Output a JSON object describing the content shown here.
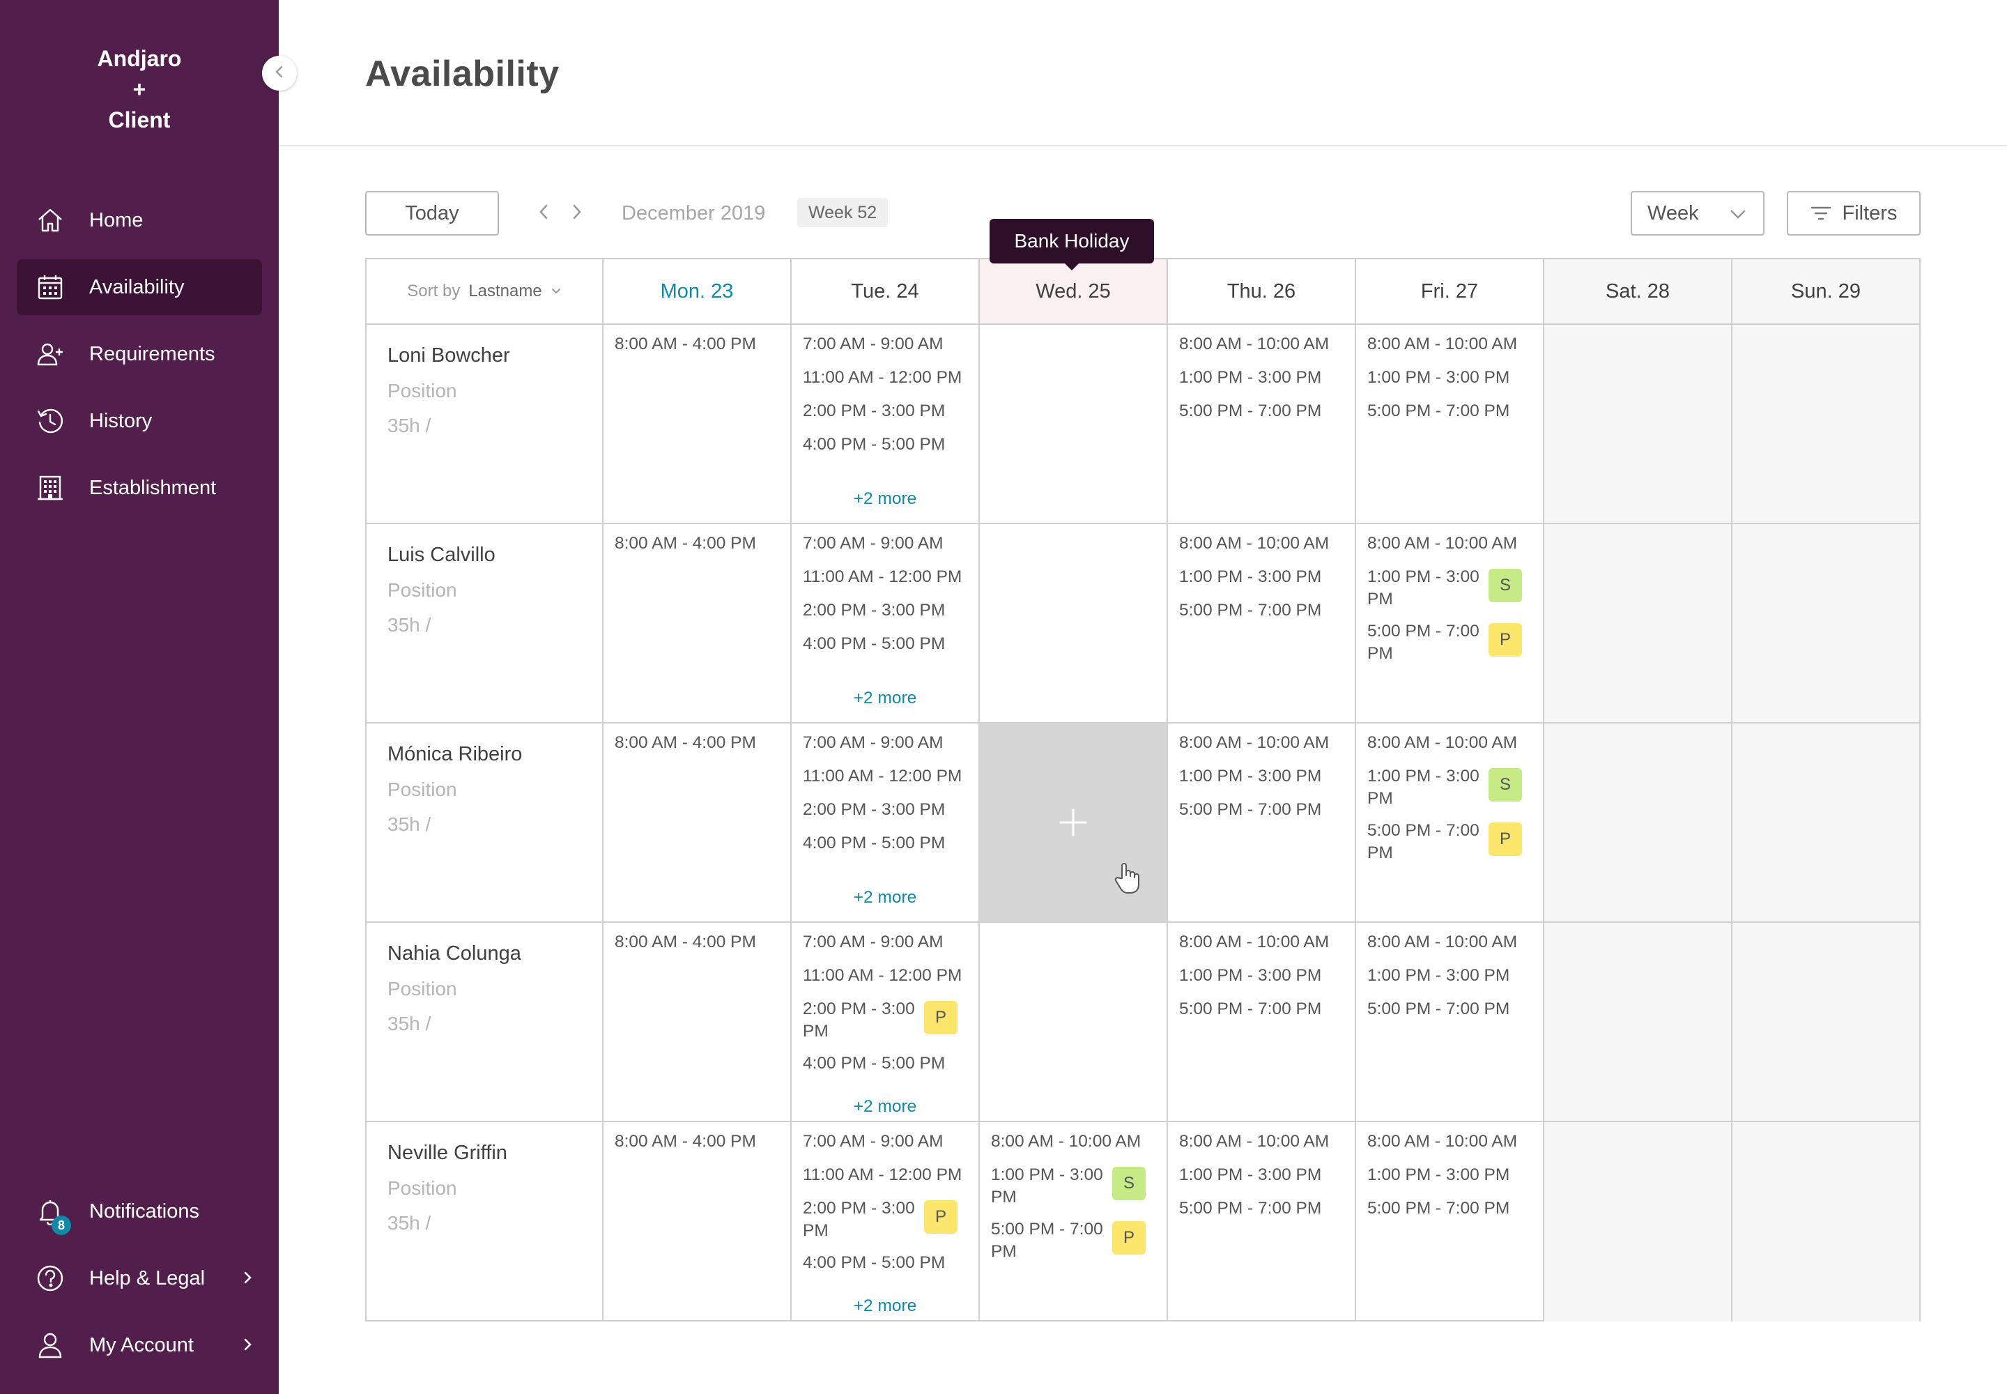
{
  "sidebar": {
    "brand_line1": "Andjaro",
    "brand_line2": "+",
    "brand_line3": "Client",
    "nav": [
      {
        "label": "Home",
        "icon": "home-icon"
      },
      {
        "label": "Availability",
        "icon": "calendar-icon",
        "active": true
      },
      {
        "label": "Requirements",
        "icon": "user-plus-icon"
      },
      {
        "label": "History",
        "icon": "history-icon"
      },
      {
        "label": "Establishment",
        "icon": "building-icon"
      }
    ],
    "bottom": [
      {
        "label": "Notifications",
        "icon": "bell-icon",
        "badge": "8"
      },
      {
        "label": "Help & Legal",
        "icon": "help-icon"
      },
      {
        "label": "My Account",
        "icon": "user-icon"
      }
    ]
  },
  "header": {
    "title": "Availability"
  },
  "toolbar": {
    "today_label": "Today",
    "month": "December 2019",
    "week_badge": "Week 52",
    "view_select": "Week",
    "filters_label": "Filters"
  },
  "tooltip": "Bank Holiday",
  "grid": {
    "sort_label": "Sort by",
    "sort_value": "Lastname",
    "days": [
      "Mon. 23",
      "Tue. 24",
      "Wed. 25",
      "Thu. 26",
      "Fri. 27",
      "Sat. 28",
      "Sun. 29"
    ],
    "more_label": "+2 more",
    "rows": [
      {
        "name": "Loni Bowcher",
        "position": "Position",
        "hours": "35h /",
        "mon": [
          "8:00 AM - 4:00 PM"
        ],
        "tue": [
          "7:00 AM - 9:00 AM",
          "11:00 AM - 12:00 PM",
          "2:00 PM - 3:00 PM",
          "4:00 PM - 5:00 PM"
        ],
        "thu": [
          "8:00 AM - 10:00 AM",
          "1:00 PM - 3:00 PM",
          "5:00 PM - 7:00 PM"
        ],
        "fri": [
          "8:00 AM - 10:00 AM",
          "1:00 PM - 3:00 PM",
          "5:00 PM - 7:00 PM"
        ]
      },
      {
        "name": "Luis Calvillo",
        "position": "Position",
        "hours": "35h /",
        "mon": [
          "8:00 AM - 4:00 PM"
        ],
        "tue": [
          "7:00 AM - 9:00 AM",
          "11:00 AM - 12:00 PM",
          "2:00 PM - 3:00 PM",
          "4:00 PM - 5:00 PM"
        ],
        "thu": [
          "8:00 AM - 10:00 AM",
          "1:00 PM - 3:00 PM",
          "5:00 PM - 7:00 PM"
        ],
        "fri": [
          "8:00 AM - 10:00 AM",
          "1:00 PM - 3:00 PM",
          "5:00 PM - 7:00 PM"
        ],
        "fri_tags": [
          "",
          "S",
          "P"
        ]
      },
      {
        "name": "Mónica Ribeiro",
        "position": "Position",
        "hours": "35h /",
        "mon": [
          "8:00 AM - 4:00 PM"
        ],
        "tue": [
          "7:00 AM - 9:00 AM",
          "11:00 AM - 12:00 PM",
          "2:00 PM - 3:00 PM",
          "4:00 PM - 5:00 PM"
        ],
        "thu": [
          "8:00 AM - 10:00 AM",
          "1:00 PM - 3:00 PM",
          "5:00 PM - 7:00 PM"
        ],
        "fri": [
          "8:00 AM - 10:00 AM",
          "1:00 PM - 3:00 PM",
          "5:00 PM - 7:00 PM"
        ],
        "fri_tags": [
          "",
          "S",
          "P"
        ]
      },
      {
        "name": "Nahia Colunga",
        "position": "Position",
        "hours": "35h /",
        "mon": [
          "8:00 AM - 4:00 PM"
        ],
        "tue": [
          "7:00 AM - 9:00 AM",
          "11:00 AM - 12:00 PM",
          "2:00 PM - 3:00 PM",
          "4:00 PM - 5:00 PM"
        ],
        "tue_tags": [
          "",
          "",
          "P",
          ""
        ],
        "thu": [
          "8:00 AM - 10:00 AM",
          "1:00 PM - 3:00 PM",
          "5:00 PM - 7:00 PM"
        ],
        "fri": [
          "8:00 AM - 10:00 AM",
          "1:00 PM - 3:00 PM",
          "5:00 PM - 7:00 PM"
        ]
      },
      {
        "name": "Neville Griffin",
        "position": "Position",
        "hours": "35h /",
        "mon": [
          "8:00 AM - 4:00 PM"
        ],
        "tue": [
          "7:00 AM - 9:00 AM",
          "11:00 AM - 12:00 PM",
          "2:00 PM - 3:00 PM",
          "4:00 PM - 5:00 PM"
        ],
        "tue_tags": [
          "",
          "",
          "P",
          ""
        ],
        "wed": [
          "8:00 AM - 10:00 AM",
          "1:00 PM - 3:00 PM",
          "5:00 PM - 7:00 PM"
        ],
        "wed_tags": [
          "",
          "S",
          "P"
        ],
        "thu": [
          "8:00 AM - 10:00 AM",
          "1:00 PM - 3:00 PM",
          "5:00 PM - 7:00 PM"
        ],
        "fri": [
          "8:00 AM - 10:00 AM",
          "1:00 PM - 3:00 PM",
          "5:00 PM - 7:00 PM"
        ]
      }
    ]
  },
  "colors": {
    "sidebar_bg": "#521e4c",
    "sidebar_active": "#3d1237",
    "accent": "#0e8aa6",
    "tag_s": "#c5ea86",
    "tag_p": "#fbe56b",
    "holiday_header": "#fbf0f0"
  }
}
